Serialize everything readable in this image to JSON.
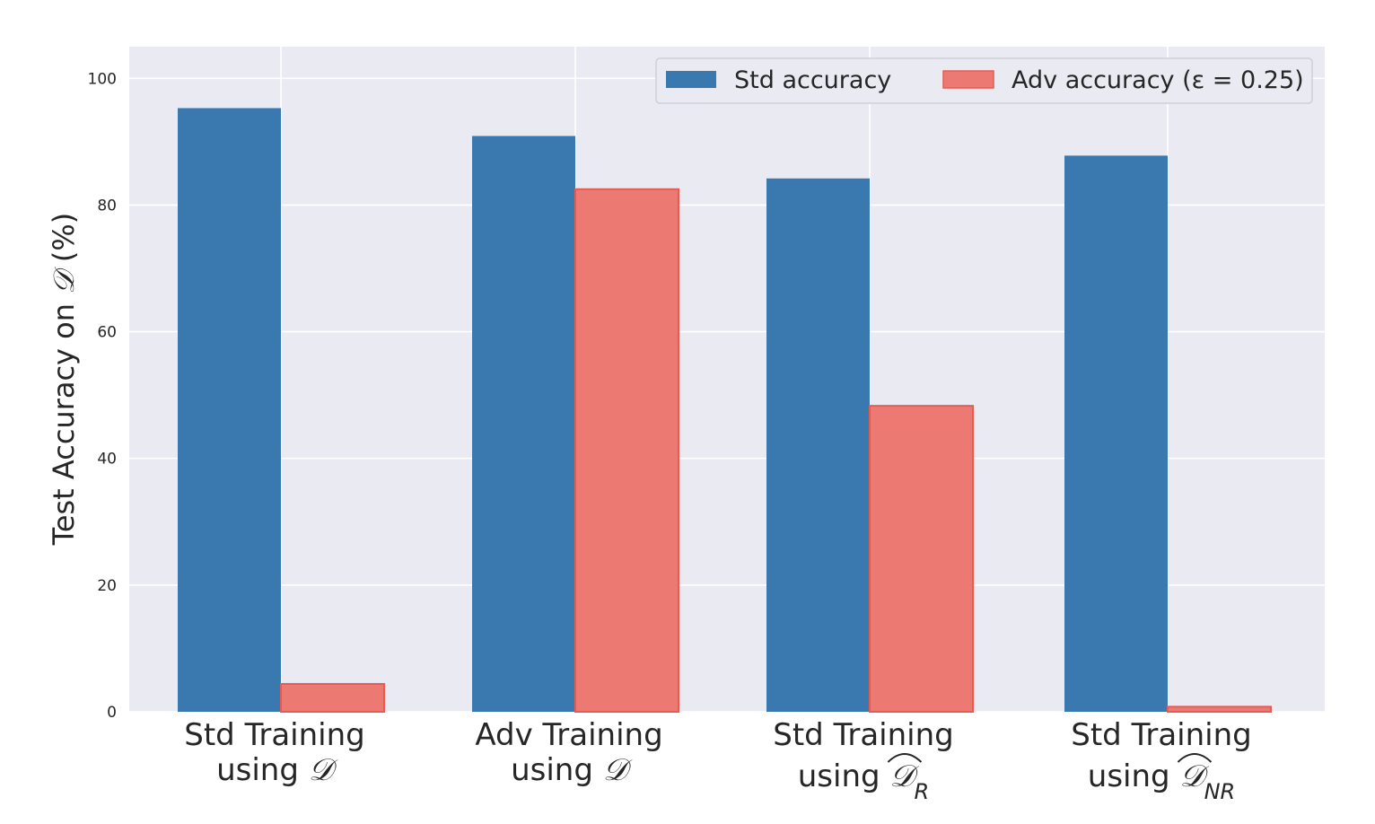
{
  "chart_data": {
    "type": "bar",
    "categories": [
      {
        "line1": "Std Training",
        "line2_prefix": "using ",
        "symbol": "𝒟",
        "hat": false,
        "subscript": ""
      },
      {
        "line1": "Adv Training",
        "line2_prefix": "using ",
        "symbol": "𝒟",
        "hat": false,
        "subscript": ""
      },
      {
        "line1": "Std Training",
        "line2_prefix": "using ",
        "symbol": "𝒟",
        "hat": true,
        "subscript": "R"
      },
      {
        "line1": "Std Training",
        "line2_prefix": "using ",
        "symbol": "𝒟",
        "hat": true,
        "subscript": "NR"
      }
    ],
    "series": [
      {
        "name": "Std accuracy",
        "values": [
          95.3,
          90.9,
          84.2,
          87.8
        ],
        "color": "#3a78b0"
      },
      {
        "name": "Adv accuracy (ε = 0.25)",
        "values": [
          4.4,
          82.5,
          48.3,
          0.8
        ],
        "color": "#ec7a73",
        "edge_color": "#e35d55"
      }
    ],
    "ylabel_prefix": "Test Accuracy on ",
    "ylabel_symbol": "𝒟",
    "ylabel_suffix": " (%)",
    "ylim": [
      0,
      105
    ],
    "yticks": [
      "0",
      "20",
      "40",
      "60",
      "80",
      "100"
    ],
    "grid": true,
    "legend_position": "top-right",
    "background": "#eaeaf2"
  }
}
